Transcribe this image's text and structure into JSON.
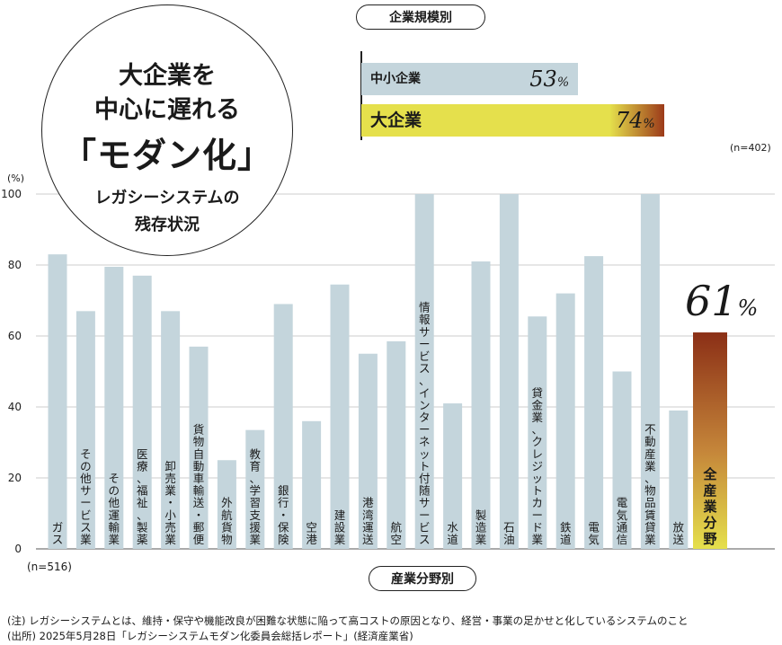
{
  "headline": {
    "line1": "大企業を",
    "line2": "中心に遅れる",
    "line3": "「モダン化」",
    "sub1": "レガシーシステムの",
    "sub2": "残存状況"
  },
  "size_chart": {
    "pill": "企業規模別",
    "n_label": "(n=402)",
    "pct_suffix": "%",
    "bars": [
      {
        "label": "中小企業",
        "value": 53,
        "value_text": "53"
      },
      {
        "label": "大企業",
        "value": 74,
        "value_text": "74"
      }
    ]
  },
  "chart_data": {
    "type": "bar",
    "ylabel": "(%)",
    "ylim": [
      0,
      100
    ],
    "yticks": [
      "0",
      "20",
      "40",
      "60",
      "80",
      "100"
    ],
    "grid": true,
    "n_label": "(n=516)",
    "x_pill": "産業分野別",
    "categories": [
      "ガス",
      "その他サービス業",
      "その他運輸業",
      "医療、福祉、製薬",
      "卸売業・小売業",
      "貨物自動車輸送・郵便",
      "外航貨物",
      "教育、学習支援業",
      "銀行・保険",
      "空港",
      "建設業",
      "港湾運送",
      "航空",
      "情報サービス、インターネット付随サービス",
      "水道",
      "製造業",
      "石油",
      "貸金業、クレジットカード業",
      "鉄道",
      "電気",
      "電気通信",
      "不動産業、物品賃貸業",
      "放送",
      "全産業分野"
    ],
    "values": [
      83,
      67,
      79.5,
      77,
      67,
      57,
      25,
      33.5,
      69,
      36,
      74.5,
      55,
      58.5,
      100,
      41,
      81,
      100,
      65.5,
      72,
      82.5,
      50,
      100,
      39,
      61
    ],
    "highlight": "全産業分野",
    "highlight_value_text": "61",
    "highlight_suffix": "%",
    "colors": {
      "bar": "#c4d5dc",
      "grid": "#cccccc",
      "highlight_top": "#8b2f16",
      "highlight_bottom": "#e5e04c",
      "highlight_text": "#1a1a1a"
    }
  },
  "notes": {
    "note1": "(注) レガシーシステムとは、維持・保守や機能改良が困難な状態に陥って高コストの原因となり、経営・事業の足かせと化しているシステムのこと",
    "source": "(出所) 2025年5月28日「レガシーシステムモダン化委員会総括レポート」(経済産業省)"
  }
}
